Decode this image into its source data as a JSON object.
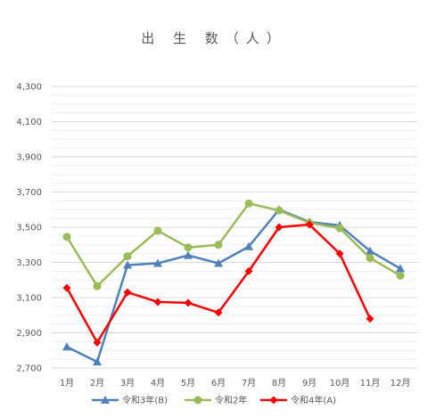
{
  "chart_data": {
    "type": "line",
    "title": "出 生 数（人）",
    "categories": [
      "1月",
      "2月",
      "3月",
      "4月",
      "5月",
      "6月",
      "7月",
      "8月",
      "9月",
      "10月",
      "11月",
      "12月"
    ],
    "ylim": [
      2700,
      4300
    ],
    "yticks": [
      2700,
      2900,
      3100,
      3300,
      3500,
      3700,
      3900,
      4100,
      4300
    ],
    "ytick_labels": [
      "2,700",
      "2,900",
      "3,100",
      "3,300",
      "3,500",
      "3,700",
      "3,900",
      "4,100",
      "4,300"
    ],
    "grid": true,
    "legend_position": "bottom",
    "series": [
      {
        "name": "令和3年(B)",
        "color": "#4F81BD",
        "marker": "triangle",
        "values": [
          2820,
          2735,
          3285,
          3295,
          3340,
          3295,
          3390,
          3600,
          3530,
          3510,
          3365,
          3265
        ]
      },
      {
        "name": "令和2年",
        "color": "#9BBB59",
        "marker": "circle",
        "values": [
          3445,
          3165,
          3335,
          3480,
          3385,
          3400,
          3635,
          3595,
          3525,
          3495,
          3325,
          3225
        ]
      },
      {
        "name": "令和4年(A)",
        "color": "#FF0000",
        "marker": "diamond",
        "values": [
          3155,
          2845,
          3130,
          3075,
          3070,
          3015,
          3250,
          3500,
          3515,
          3350,
          2980,
          null
        ]
      }
    ]
  }
}
